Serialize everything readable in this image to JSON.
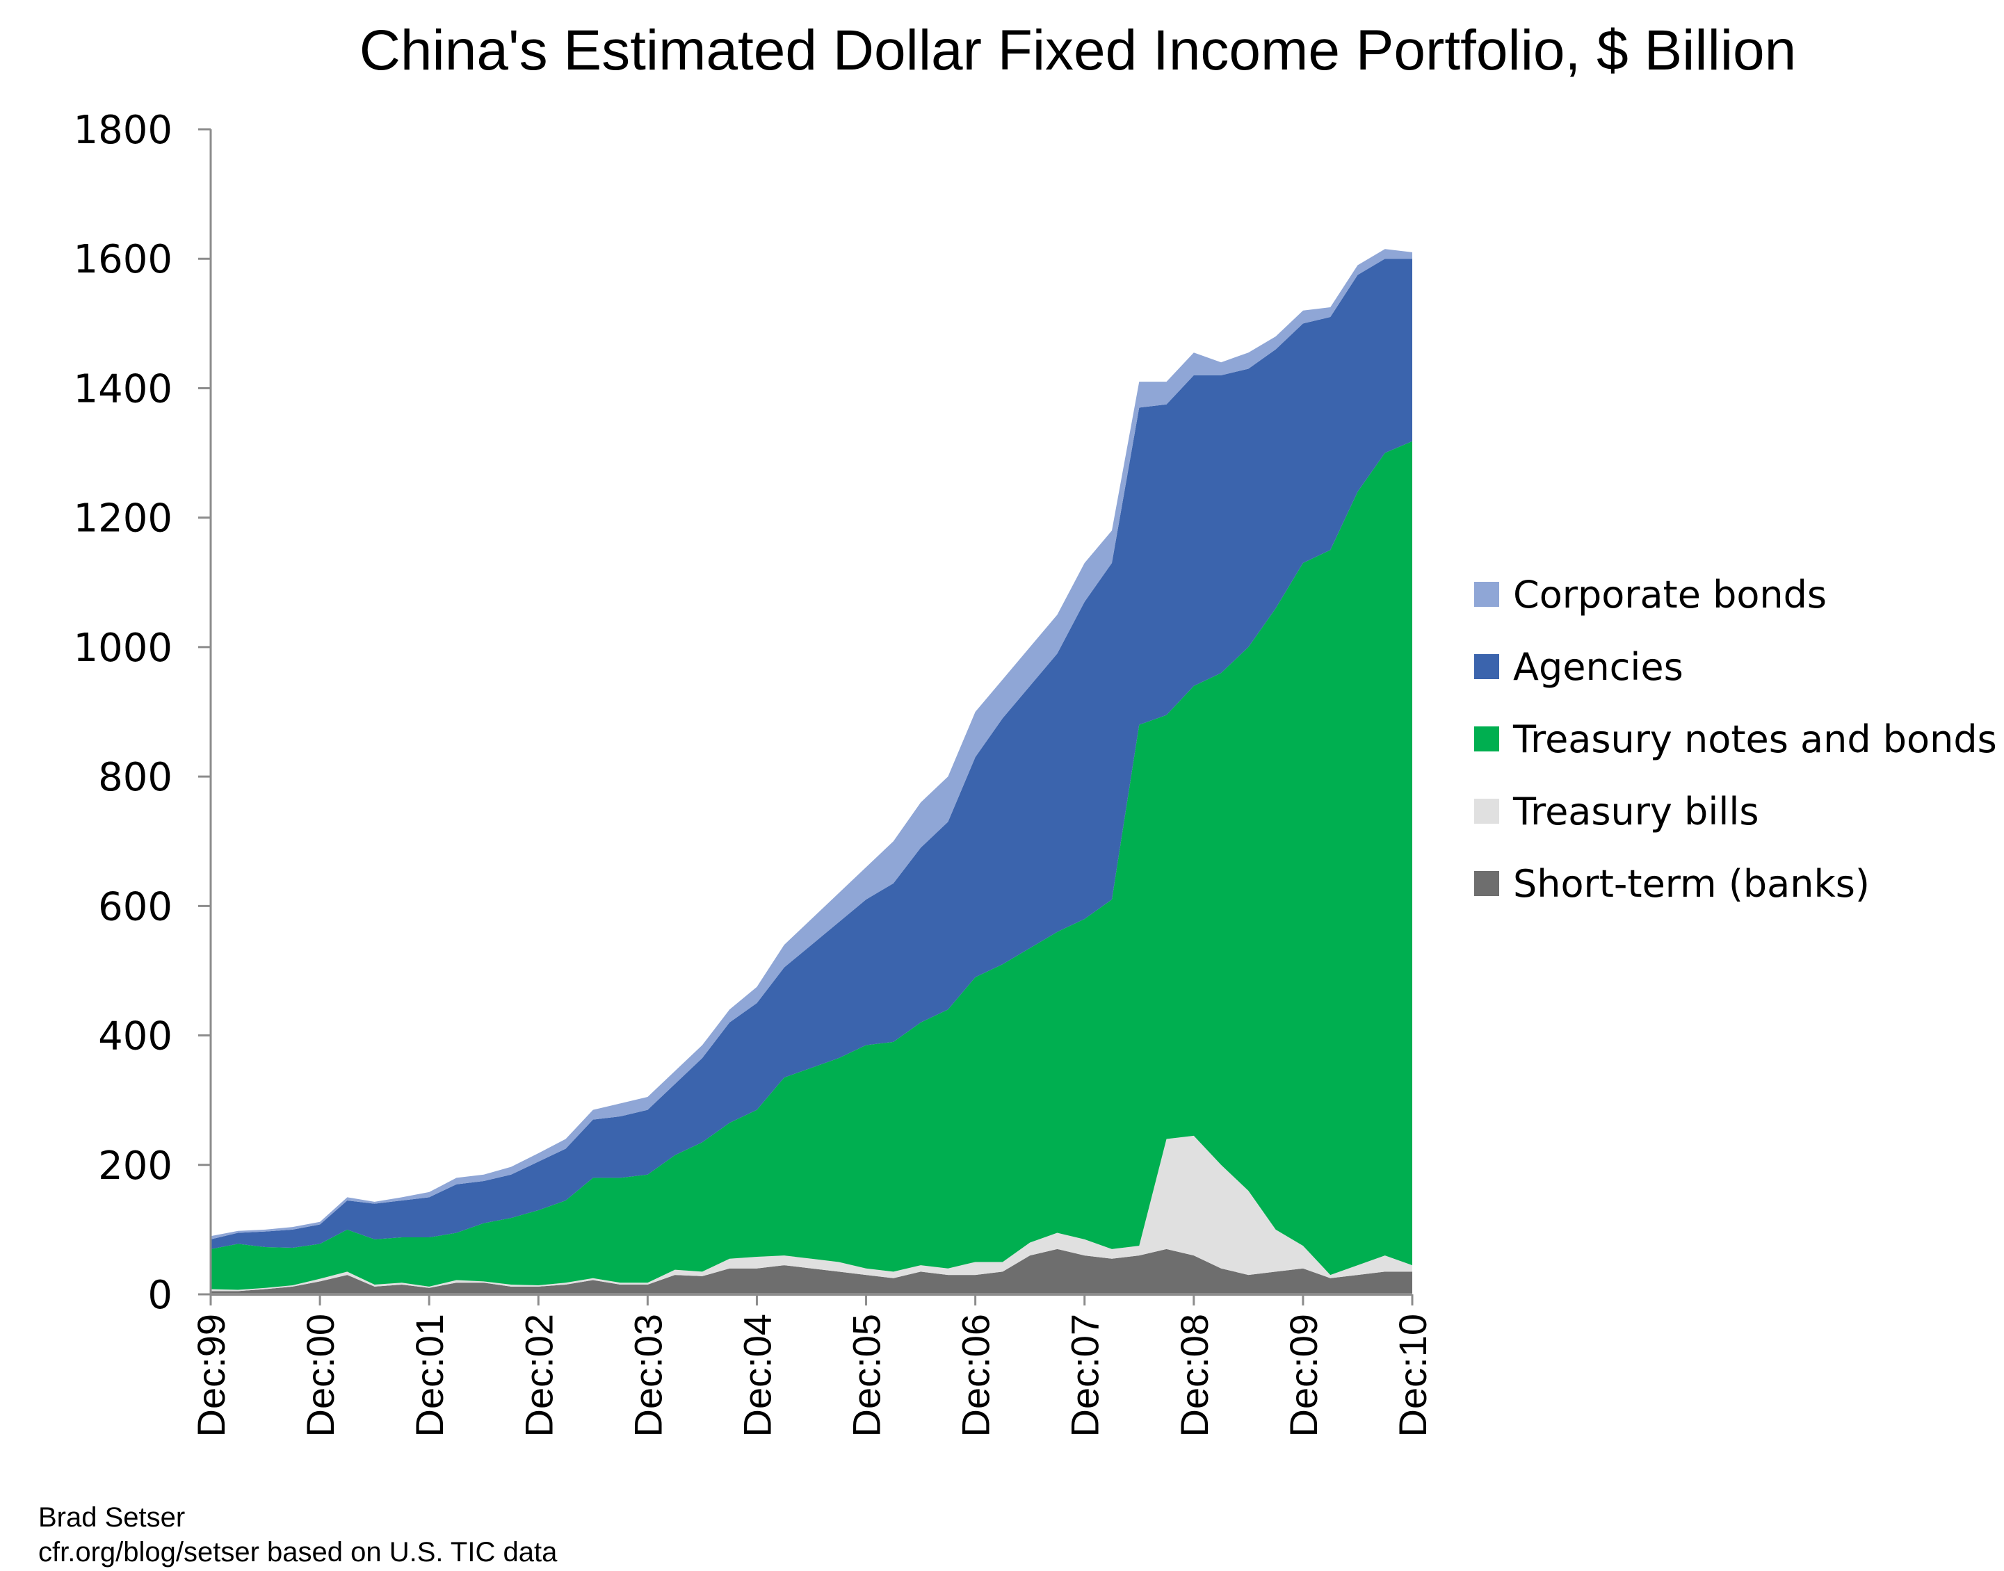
{
  "chart_data": {
    "type": "area",
    "stacked": true,
    "title": "China's Estimated Dollar Fixed Income Portfolio, $ Billion",
    "xlabel": "",
    "ylabel": "",
    "ylim": [
      0,
      1800
    ],
    "yticks": [
      0,
      200,
      400,
      600,
      800,
      1000,
      1200,
      1400,
      1600,
      1800
    ],
    "xtick_labels": [
      "Dec:99",
      "Dec:00",
      "Dec:01",
      "Dec:02",
      "Dec:03",
      "Dec:04",
      "Dec:05",
      "Dec:06",
      "Dec:07",
      "Dec:08",
      "Dec:09",
      "Dec:10"
    ],
    "x": [
      "1999-12",
      "2000-03",
      "2000-06",
      "2000-09",
      "2000-12",
      "2001-03",
      "2001-06",
      "2001-09",
      "2001-12",
      "2002-03",
      "2002-06",
      "2002-09",
      "2002-12",
      "2003-03",
      "2003-06",
      "2003-09",
      "2003-12",
      "2004-03",
      "2004-06",
      "2004-09",
      "2004-12",
      "2005-03",
      "2005-06",
      "2005-09",
      "2005-12",
      "2006-03",
      "2006-06",
      "2006-09",
      "2006-12",
      "2007-03",
      "2007-06",
      "2007-09",
      "2007-12",
      "2008-03",
      "2008-06",
      "2008-09",
      "2008-12",
      "2009-03",
      "2009-06",
      "2009-09",
      "2009-12",
      "2010-03",
      "2010-06",
      "2010-09",
      "2010-12"
    ],
    "grid": false,
    "legend_position": "right",
    "series": [
      {
        "name": "Short-term (banks)",
        "color": "#6E6E6E",
        "values": [
          5,
          5,
          8,
          12,
          20,
          30,
          12,
          15,
          10,
          18,
          18,
          12,
          12,
          15,
          22,
          15,
          15,
          30,
          28,
          40,
          40,
          45,
          40,
          35,
          30,
          25,
          35,
          30,
          30,
          35,
          60,
          70,
          60,
          55,
          60,
          70,
          60,
          40,
          30,
          35,
          40,
          25,
          30,
          35,
          35
        ]
      },
      {
        "name": "Treasury bills",
        "color": "#E0E0E0",
        "values": [
          3,
          2,
          2,
          2,
          4,
          5,
          3,
          3,
          2,
          4,
          2,
          3,
          2,
          3,
          3,
          3,
          3,
          8,
          7,
          15,
          18,
          15,
          15,
          15,
          10,
          10,
          10,
          10,
          20,
          15,
          20,
          25,
          25,
          15,
          15,
          170,
          185,
          160,
          130,
          65,
          35,
          5,
          15,
          25,
          10
        ]
      },
      {
        "name": "Treasury notes and bonds",
        "color": "#00AF50",
        "values": [
          62,
          71,
          63,
          58,
          54,
          65,
          70,
          70,
          76,
          73,
          90,
          103,
          116,
          127,
          155,
          162,
          167,
          177,
          200,
          210,
          227,
          275,
          295,
          315,
          345,
          355,
          375,
          400,
          440,
          460,
          455,
          465,
          495,
          540,
          805,
          655,
          695,
          760,
          840,
          960,
          1055,
          1120,
          1195,
          1240,
          1273
        ]
      },
      {
        "name": "Agencies",
        "color": "#3B64AD",
        "values": [
          15,
          17,
          24,
          28,
          30,
          45,
          55,
          57,
          62,
          75,
          65,
          67,
          75,
          80,
          90,
          95,
          100,
          110,
          130,
          155,
          165,
          170,
          190,
          210,
          225,
          245,
          270,
          290,
          340,
          380,
          405,
          430,
          490,
          520,
          490,
          480,
          480,
          460,
          430,
          400,
          370,
          360,
          335,
          300,
          282
        ]
      },
      {
        "name": "Corporate bonds",
        "color": "#8FA6D6",
        "values": [
          5,
          3,
          3,
          4,
          4,
          5,
          3,
          5,
          8,
          10,
          10,
          12,
          13,
          15,
          15,
          20,
          20,
          20,
          20,
          20,
          25,
          35,
          40,
          45,
          50,
          65,
          70,
          70,
          70,
          60,
          60,
          60,
          60,
          50,
          40,
          35,
          35,
          20,
          25,
          20,
          20,
          15,
          15,
          15,
          10
        ]
      }
    ],
    "legend_order": [
      "Corporate bonds",
      "Agencies",
      "Treasury notes and bonds",
      "Treasury bills",
      "Short-term (banks)"
    ]
  },
  "footer": {
    "author": "Brad Setser",
    "source": "cfr.org/blog/setser based on U.S. TIC data"
  },
  "axis_color": "#8C8C8C"
}
